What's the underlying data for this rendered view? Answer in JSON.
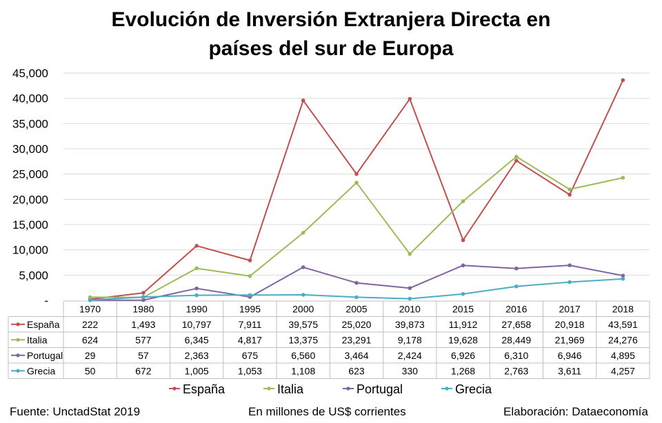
{
  "title_line1": "Evolución de Inversión Extranjera Directa en",
  "title_line2": "países del sur de Europa",
  "footer": {
    "source": "Fuente: UnctadStat 2019",
    "units": "En millones de US$ corrientes",
    "credit": "Elaboración: Dataeconomía"
  },
  "chart_data": {
    "type": "line",
    "title": "Evolución de Inversión Extranjera Directa en países del sur de Europa",
    "categories": [
      "1970",
      "1980",
      "1990",
      "1995",
      "2000",
      "2005",
      "2010",
      "2015",
      "2016",
      "2017",
      "2018"
    ],
    "y_ticks": [
      "-",
      "5,000",
      "10,000",
      "15,000",
      "20,000",
      "25,000",
      "30,000",
      "35,000",
      "40,000",
      "45,000"
    ],
    "ylim": [
      0,
      45000
    ],
    "grid": true,
    "legend": "bottom",
    "data_table": true,
    "series": [
      {
        "name": "España",
        "color": "#C0504D",
        "values": [
          222,
          1493,
          10797,
          7911,
          39575,
          25020,
          39873,
          11912,
          27658,
          20918,
          43591
        ],
        "labels": [
          "222",
          "1,493",
          "10,797",
          "7,911",
          "39,575",
          "25,020",
          "39,873",
          "11,912",
          "27,658",
          "20,918",
          "43,591"
        ]
      },
      {
        "name": "Italia",
        "color": "#9BBB59",
        "values": [
          624,
          577,
          6345,
          4817,
          13375,
          23291,
          9178,
          19628,
          28449,
          21969,
          24276
        ],
        "labels": [
          "624",
          "577",
          "6,345",
          "4,817",
          "13,375",
          "23,291",
          "9,178",
          "19,628",
          "28,449",
          "21,969",
          "24,276"
        ]
      },
      {
        "name": "Portugal",
        "color": "#8064A2",
        "values": [
          29,
          57,
          2363,
          675,
          6560,
          3464,
          2424,
          6926,
          6310,
          6946,
          4895
        ],
        "labels": [
          "29",
          "57",
          "2,363",
          "675",
          "6,560",
          "3,464",
          "2,424",
          "6,926",
          "6,310",
          "6,946",
          "4,895"
        ]
      },
      {
        "name": "Grecia",
        "color": "#4BACC6",
        "values": [
          50,
          672,
          1005,
          1053,
          1108,
          623,
          330,
          1268,
          2763,
          3611,
          4257
        ],
        "labels": [
          "50",
          "672",
          "1,005",
          "1,053",
          "1,108",
          "623",
          "330",
          "1,268",
          "2,763",
          "3,611",
          "4,257"
        ]
      }
    ]
  }
}
